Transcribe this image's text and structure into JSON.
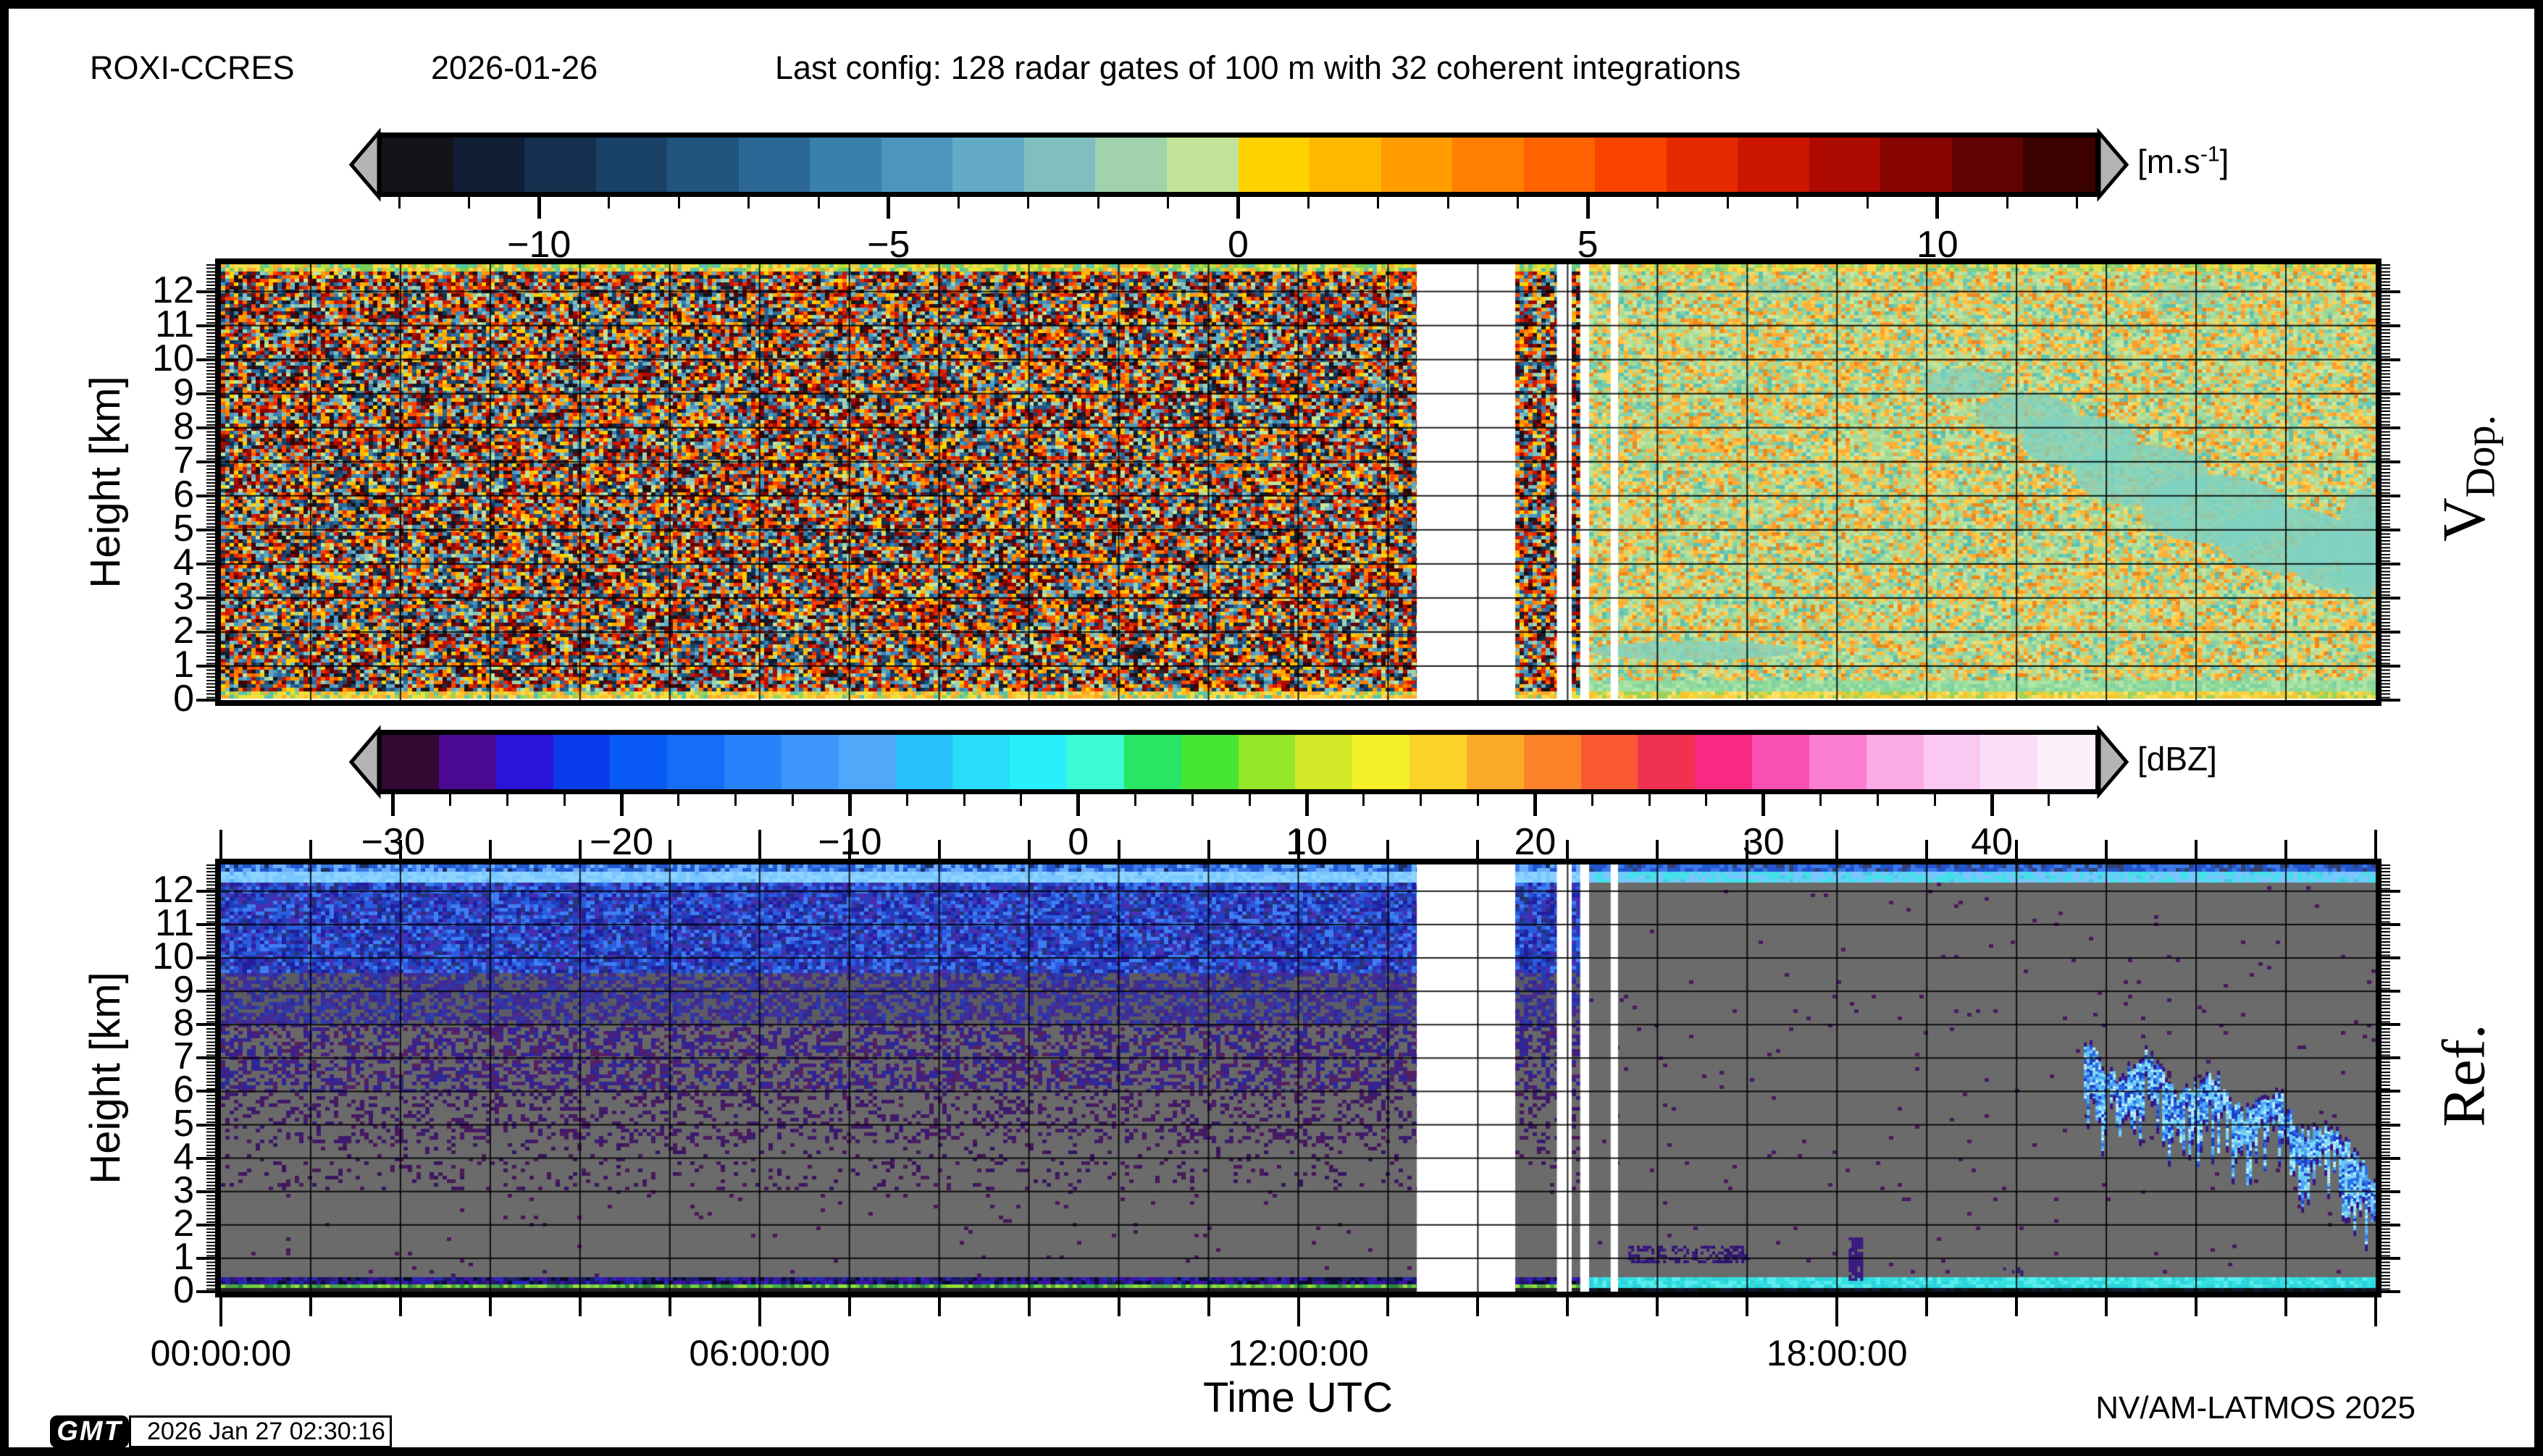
{
  "header": {
    "station": "ROXI-CCRES",
    "date": "2026-01-26",
    "config": "Last config: 128 radar gates of 100 m with 32 coherent integrations"
  },
  "footer": {
    "gmt_logo": "GMT",
    "render_timestamp": "2026 Jan 27 02:30:16",
    "credit": "NV/AM-LATMOS 2025",
    "xaxis_title": "Time UTC"
  },
  "axes": {
    "ylabel": "Height [km]",
    "y_tick_labels": [
      0,
      1,
      2,
      3,
      4,
      5,
      6,
      7,
      8,
      9,
      10,
      11,
      12
    ],
    "x_tick_hours": [
      0,
      6,
      12,
      18
    ],
    "x_tick_labels": [
      "00:00:00",
      "06:00:00",
      "12:00:00",
      "18:00:00"
    ],
    "x_range_hours": [
      0,
      24
    ],
    "y_range_km": [
      0,
      12.8
    ],
    "grid": "1-hour vertical and 1-km horizontal black gridlines"
  },
  "chart_data": [
    {
      "type": "heatmap",
      "name": "doppler-velocity",
      "side_label": {
        "main": "V",
        "sub": "Dop."
      },
      "x_range_hours": [
        0,
        24
      ],
      "y_range_km": [
        0,
        12.8
      ],
      "colorbar": {
        "unit_main": "[m.s",
        "unit_sup": "-1",
        "unit_end": "]",
        "min": -12.25,
        "max": 12.25,
        "major_ticks": [
          -10,
          -5,
          0,
          5,
          10
        ],
        "minor_step": 1,
        "colors": [
          "#141418",
          "#101e34",
          "#14304e",
          "#1a4268",
          "#225480",
          "#2c6896",
          "#3a80ac",
          "#4c96bc",
          "#62aac6",
          "#80bec0",
          "#a0d2ac",
          "#c2e49a",
          "#ffd200",
          "#ffb800",
          "#ff9c00",
          "#ff8000",
          "#ff6200",
          "#f94400",
          "#e62a00",
          "#cc1600",
          "#ac0a00",
          "#880402",
          "#620202",
          "#3c0202"
        ],
        "arrow_fill": "#b4b4b4"
      },
      "regions": [
        {
          "t0": 0,
          "t1": 13.32,
          "type": "noise",
          "bands": "main"
        },
        {
          "t0": 13.32,
          "t1": 14.42,
          "type": "blank"
        },
        {
          "t0": 14.42,
          "t1": 14.88,
          "type": "noise",
          "bands": "main"
        },
        {
          "t0": 14.88,
          "t1": 15.05,
          "type": "blank"
        },
        {
          "t0": 15.05,
          "t1": 15.14,
          "type": "noise",
          "bands": "main"
        },
        {
          "t0": 15.14,
          "t1": 15.24,
          "type": "blank"
        },
        {
          "t0": 15.24,
          "t1": 24,
          "type": "noise",
          "bands": "calm"
        },
        {
          "t0": 15.48,
          "t1": 15.56,
          "type": "blank"
        }
      ],
      "bands": {
        "main": [
          {
            "k0": 12.55,
            "k1": 12.8,
            "colors": [
              "#ffd84a",
              "#e8e33c",
              "#b8dd3c",
              "#7acc58",
              "#ffaa2a",
              "#58c4a8"
            ],
            "density": 0.97,
            "bg": "#e3d455"
          },
          {
            "k0": 0.25,
            "k1": 12.55,
            "colors": "cbar",
            "density": 1,
            "bg": "#888"
          },
          {
            "k0": 0,
            "k1": 0.25,
            "colors": [
              "#ffd84a",
              "#ffc22e",
              "#e8e33c",
              "#9ad45c",
              "#ffaa2a",
              "#58c4a8"
            ],
            "density": 0.97,
            "bg": "#e8c83e"
          }
        ],
        "calm": [
          {
            "k0": 12.55,
            "k1": 12.8,
            "colors": [
              "#ffd84a",
              "#e0e048",
              "#a8d85c",
              "#7acc82",
              "#ffb23a"
            ],
            "density": 0.95,
            "bg": "#cfe08a"
          },
          {
            "k0": 0.55,
            "k1": 12.55,
            "colors": [
              "#b5df9b",
              "#a9d98f",
              "#bfe3a1",
              "#9ed694",
              "#b5df9b",
              "#6fc9b2",
              "#84d2a8",
              "#ffc445",
              "#ff9e2e",
              "#f7b23a",
              "#ffd24f",
              "#e8891f",
              "#5fbfae",
              "#aadc96",
              "#ffae37",
              "#c9e79f"
            ],
            "density": 1,
            "bg": "#b5df9b"
          },
          {
            "k0": 0.28,
            "k1": 0.55,
            "colors": [
              "#9adf9e",
              "#8ed898",
              "#aee5a8",
              "#7fd2a2"
            ],
            "density": 1,
            "bg": "#96dc9c"
          },
          {
            "k0": 0,
            "k1": 0.28,
            "colors": [
              "#ffd23e",
              "#f5c52e",
              "#d8d848",
              "#ffe066",
              "#9ad45c"
            ],
            "density": 1,
            "bg": "#f2ca3a"
          }
        ]
      },
      "features": [
        {
          "type": "blob",
          "t": 16.4,
          "k": 1.45,
          "w": 2.3,
          "h": 0.55,
          "alpha": 0.8
        },
        {
          "type": "blob",
          "t": 19.4,
          "k": 9.3,
          "w": 0.9,
          "h": 0.9,
          "alpha": 0.7
        },
        {
          "type": "blob",
          "t": 20.1,
          "k": 8.4,
          "w": 1.1,
          "h": 1.2,
          "alpha": 0.75
        },
        {
          "type": "blob",
          "t": 20.7,
          "k": 7.6,
          "w": 1.3,
          "h": 1.5,
          "alpha": 0.8
        },
        {
          "type": "blob",
          "t": 21.4,
          "k": 6.6,
          "w": 1.5,
          "h": 1.8,
          "alpha": 0.8
        },
        {
          "type": "blob",
          "t": 22.2,
          "k": 5.6,
          "w": 1.6,
          "h": 2.0,
          "alpha": 0.85
        },
        {
          "type": "blob",
          "t": 23.0,
          "k": 4.7,
          "w": 1.5,
          "h": 1.9,
          "alpha": 0.85
        },
        {
          "type": "blob",
          "t": 23.6,
          "k": 4.1,
          "w": 1.1,
          "h": 1.7,
          "alpha": 0.85
        },
        {
          "type": "blob",
          "t": 23.85,
          "k": 4.6,
          "w": 0.55,
          "h": 3.2,
          "alpha": 0.9
        },
        {
          "type": "blob",
          "t": 21.9,
          "k": 11.9,
          "w": 0.8,
          "h": 0.5,
          "alpha": 0.5
        },
        {
          "type": "blob",
          "t": 17.3,
          "k": 12.1,
          "w": 0.6,
          "h": 0.4,
          "alpha": 0.4
        }
      ],
      "blob_color": "#7fd2c2"
    },
    {
      "type": "heatmap",
      "name": "reflectivity",
      "side_label": {
        "main": "Ref.",
        "sub": ""
      },
      "x_range_hours": [
        0,
        24
      ],
      "y_range_km": [
        0,
        12.8
      ],
      "colorbar": {
        "unit_main": "[dBZ]",
        "unit_sup": "",
        "unit_end": "",
        "min": -30.5,
        "max": 44.5,
        "major_ticks": [
          -30,
          -20,
          -10,
          0,
          10,
          20,
          30,
          40
        ],
        "minor_step": 2.5,
        "colors": [
          "#330833",
          "#4b0991",
          "#2a14d8",
          "#0a3cee",
          "#0a5af6",
          "#146ef8",
          "#2882fa",
          "#3c96fa",
          "#50a8fa",
          "#28c0fa",
          "#28dcfa",
          "#28f0fa",
          "#3cfad2",
          "#28e664",
          "#46e632",
          "#96e628",
          "#d2ea28",
          "#f5f028",
          "#fad228",
          "#faaa28",
          "#fa8228",
          "#fa5a32",
          "#f03250",
          "#fa2882",
          "#fa50b4",
          "#fa7dd2",
          "#faaae6",
          "#fac8f0",
          "#fadef7",
          "#fdf0fb"
        ],
        "arrow_fill": "#b4b4b4"
      },
      "regions": [
        {
          "t0": 0,
          "t1": 13.32,
          "type": "noise",
          "bands": "main"
        },
        {
          "t0": 13.32,
          "t1": 14.42,
          "type": "blank"
        },
        {
          "t0": 14.42,
          "t1": 14.88,
          "type": "noise",
          "bands": "main"
        },
        {
          "t0": 14.88,
          "t1": 15.05,
          "type": "blank"
        },
        {
          "t0": 15.05,
          "t1": 15.14,
          "type": "noise",
          "bands": "main"
        },
        {
          "t0": 15.14,
          "t1": 15.24,
          "type": "blank"
        },
        {
          "t0": 15.24,
          "t1": 24,
          "type": "noise",
          "bands": "calm"
        },
        {
          "t0": 15.48,
          "t1": 15.56,
          "type": "blank"
        }
      ],
      "bands": {
        "main": [
          {
            "k0": 12.55,
            "k1": 12.8,
            "colors": [
              "#2255cc",
              "#3b79e8",
              "#6db0ff"
            ],
            "density": 0.95,
            "bg": "#1a2f66"
          },
          {
            "k0": 12.3,
            "k1": 12.55,
            "colors": [
              "#79c7ff",
              "#8fd4ff"
            ],
            "density": 0.98,
            "bg": "#5ab0f5"
          },
          {
            "k0": 9.5,
            "k1": 12.3,
            "colors": [
              "#1f3fbb",
              "#2a5ce0",
              "#3f7df2",
              "#2020a0",
              "#4430b0"
            ],
            "density": 0.92,
            "bg": "#27337a"
          },
          {
            "k0": 8.0,
            "k1": 9.5,
            "colors": [
              "#2a3cb0",
              "#3c2f9f",
              "#4a2a8a",
              "#342a96",
              "#5a5a64"
            ],
            "density": 0.75,
            "bg": "#5c5c64"
          },
          {
            "k0": 6.0,
            "k1": 8.0,
            "colors": [
              "#46207f",
              "#3a1f90",
              "#552060",
              "#2a2a9a"
            ],
            "density": 0.5,
            "bg": "#686868"
          },
          {
            "k0": 4.5,
            "k1": 6.0,
            "colors": [
              "#4a1a60",
              "#3c1a70"
            ],
            "density": 0.28,
            "bg": "#6a6a6a"
          },
          {
            "k0": 3.0,
            "k1": 4.5,
            "colors": [
              "#481a58",
              "#3a1560"
            ],
            "density": 0.12,
            "bg": "#6b6b6b"
          },
          {
            "k0": 0.42,
            "k1": 3.0,
            "colors": [
              "#4a1858"
            ],
            "density": 0.015,
            "bg": "#6b6b6b"
          },
          {
            "k0": 0.22,
            "k1": 0.42,
            "colors": [
              "#1b1670",
              "#2828b0",
              "#0a0a30",
              "#3a14a0"
            ],
            "density": 0.92,
            "bg": "#202060"
          },
          {
            "k0": 0.06,
            "k1": 0.22,
            "colors": [
              "#6fcf3f",
              "#97dd3a",
              "#3fae4a",
              "#2a8838"
            ],
            "density": 0.9,
            "bg": "#55a040"
          },
          {
            "k0": 0,
            "k1": 0.06,
            "colors": [
              "#222"
            ],
            "density": 1,
            "bg": "#222"
          }
        ],
        "calm": [
          {
            "k0": 12.55,
            "k1": 12.8,
            "colors": [
              "#2255cc",
              "#3b79e8"
            ],
            "density": 0.8,
            "bg": "#33406e"
          },
          {
            "k0": 12.3,
            "k1": 12.55,
            "colors": [
              "#45e0e8",
              "#79c7ff"
            ],
            "density": 0.95,
            "bg": "#49c8e8"
          },
          {
            "k0": 0.45,
            "k1": 12.3,
            "colors": [
              "#4a1a60"
            ],
            "density": 0.01,
            "bg": "#6b6b6b"
          },
          {
            "k0": 0.14,
            "k1": 0.45,
            "colors": [
              "#35e0e0",
              "#2ad4dc",
              "#58ecec"
            ],
            "density": 1,
            "bg": "#2ad0d8"
          },
          {
            "k0": 0,
            "k1": 0.14,
            "colors": [
              "#15172e",
              "#111"
            ],
            "density": 1,
            "bg": "#15172e"
          }
        ]
      },
      "features": [
        {
          "type": "speckle",
          "t": 16.35,
          "w": 1.35,
          "k": 1.15,
          "h": 0.45,
          "colors": [
            "#3a1580",
            "#2a1070"
          ],
          "density": 0.45
        },
        {
          "type": "speckle",
          "t": 18.2,
          "w": 0.14,
          "k": 1.0,
          "h": 1.25,
          "colors": [
            "#3a1580"
          ],
          "density": 0.8
        },
        {
          "type": "speckle",
          "t": 19.95,
          "w": 0.2,
          "k": 0.6,
          "h": 0.25,
          "colors": [
            "#3a1580"
          ],
          "density": 0.4
        },
        {
          "type": "cloud",
          "top_pts": [
            [
              20.75,
              7.5
            ],
            [
              21.1,
              6.3
            ],
            [
              21.45,
              7.1
            ],
            [
              21.8,
              5.9
            ],
            [
              22.15,
              6.6
            ],
            [
              22.5,
              5.3
            ],
            [
              22.9,
              5.9
            ],
            [
              23.2,
              4.6
            ],
            [
              23.5,
              5.1
            ],
            [
              23.8,
              3.9
            ],
            [
              24,
              3.1
            ]
          ],
          "max_depth": 2.0,
          "colors": [
            "#2b6df0",
            "#4aa8ff",
            "#7fdfff",
            "#b8f0ff",
            "#1b3fd0",
            "#66ccff"
          ],
          "fringe": "#3a1480"
        }
      ],
      "blob_color": "#7fd2c2"
    }
  ]
}
